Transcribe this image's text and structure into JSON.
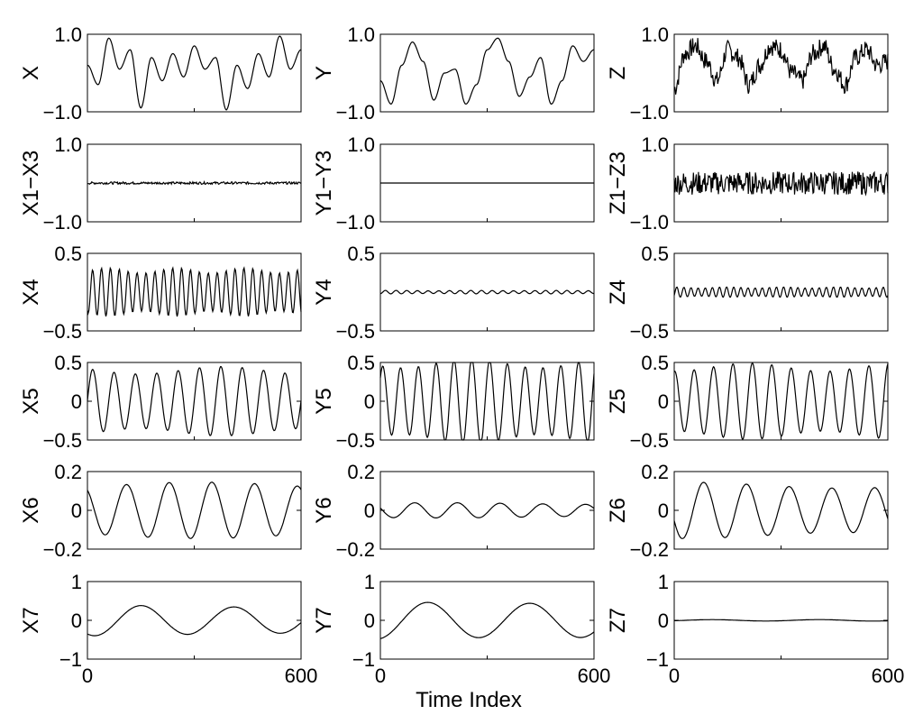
{
  "figure": {
    "xlabel": "Time Index",
    "line_color": "#000000",
    "background": "#ffffff"
  },
  "chart_data": [
    {
      "type": "line",
      "row": 0,
      "col": 0,
      "ylabel": "X",
      "ylim": [
        -1,
        1
      ],
      "yticks": [
        "1.0",
        "−1.0"
      ],
      "xlim": [
        0,
        600
      ],
      "xticks": [],
      "x": [
        0,
        30,
        60,
        90,
        120,
        150,
        180,
        210,
        240,
        270,
        300,
        330,
        360,
        390,
        420,
        450,
        480,
        510,
        540,
        570,
        600
      ],
      "series": [
        {
          "values": [
            0.2,
            -0.3,
            0.9,
            0.1,
            0.6,
            -0.9,
            0.4,
            -0.2,
            0.5,
            -0.1,
            0.7,
            0.1,
            0.4,
            -0.95,
            0.2,
            -0.4,
            0.5,
            -0.1,
            0.95,
            0.1,
            0.6
          ]
        }
      ]
    },
    {
      "type": "line",
      "row": 0,
      "col": 1,
      "ylabel": "Y",
      "ylim": [
        -1,
        1
      ],
      "yticks": [
        "1.0",
        "−1.0"
      ],
      "xlim": [
        0,
        600
      ],
      "xticks": [],
      "x": [
        0,
        30,
        60,
        90,
        120,
        150,
        180,
        210,
        240,
        270,
        300,
        330,
        360,
        390,
        420,
        450,
        480,
        510,
        540,
        570,
        600
      ],
      "series": [
        {
          "values": [
            -0.2,
            -0.8,
            0.2,
            0.8,
            0.3,
            -0.7,
            0.0,
            0.1,
            -0.8,
            -0.3,
            0.6,
            0.9,
            0.3,
            -0.6,
            -0.1,
            0.4,
            -0.8,
            -0.2,
            0.7,
            0.3,
            0.6
          ]
        }
      ]
    },
    {
      "type": "line",
      "row": 0,
      "col": 2,
      "ylabel": "Z",
      "ylim": [
        -1,
        1
      ],
      "yticks": [
        "1.0",
        "−1.0"
      ],
      "xlim": [
        0,
        600
      ],
      "xticks": [],
      "x": [
        0,
        30,
        60,
        90,
        120,
        150,
        180,
        210,
        240,
        270,
        300,
        330,
        360,
        390,
        420,
        450,
        480,
        510,
        540,
        570,
        600
      ],
      "series": [
        {
          "values": [
            -0.4,
            0.5,
            0.7,
            0.3,
            -0.2,
            0.6,
            0.4,
            -0.3,
            0.2,
            0.7,
            0.6,
            0.0,
            -0.2,
            0.5,
            0.7,
            0.1,
            -0.3,
            0.4,
            0.6,
            0.2,
            0.3
          ]
        }
      ],
      "noise": 0.25
    },
    {
      "type": "line",
      "row": 1,
      "col": 0,
      "ylabel": "X1−X3",
      "ylim": [
        -1,
        1
      ],
      "yticks": [
        "1.0",
        "−1.0"
      ],
      "xlim": [
        0,
        600
      ],
      "xticks": [],
      "x": [
        0,
        600
      ],
      "series": [
        {
          "values": [
            0,
            0
          ]
        }
      ],
      "noise": 0.03
    },
    {
      "type": "line",
      "row": 1,
      "col": 1,
      "ylabel": "Y1−Y3",
      "ylim": [
        -1,
        1
      ],
      "yticks": [
        "1.0",
        "−1.0"
      ],
      "xlim": [
        0,
        600
      ],
      "xticks": [],
      "x": [
        0,
        600
      ],
      "series": [
        {
          "values": [
            0,
            0
          ]
        }
      ],
      "noise": 0.0
    },
    {
      "type": "line",
      "row": 1,
      "col": 2,
      "ylabel": "Z1−Z3",
      "ylim": [
        -1,
        1
      ],
      "yticks": [
        "1.0",
        "−1.0"
      ],
      "xlim": [
        0,
        600
      ],
      "xticks": [],
      "x": [
        0,
        600
      ],
      "series": [
        {
          "values": [
            0,
            0
          ]
        }
      ],
      "noise": 0.3
    },
    {
      "type": "line",
      "row": 2,
      "col": 0,
      "ylabel": "X4",
      "ylim": [
        -0.5,
        0.5
      ],
      "yticks": [
        "0.5",
        "−0.5"
      ],
      "xlim": [
        0,
        600
      ],
      "xticks": [],
      "x": [
        0,
        600
      ],
      "series": [
        {
          "values": [
            0,
            0
          ]
        }
      ],
      "osc": {
        "amp": 0.28,
        "cycles": 24
      }
    },
    {
      "type": "line",
      "row": 2,
      "col": 1,
      "ylabel": "Y4",
      "ylim": [
        -0.5,
        0.5
      ],
      "yticks": [
        "0.5",
        "−0.5"
      ],
      "xlim": [
        0,
        600
      ],
      "xticks": [],
      "x": [
        0,
        600
      ],
      "series": [
        {
          "values": [
            0,
            0
          ]
        }
      ],
      "osc": {
        "amp": 0.02,
        "cycles": 20
      }
    },
    {
      "type": "line",
      "row": 2,
      "col": 2,
      "ylabel": "Z4",
      "ylim": [
        -0.5,
        0.5
      ],
      "yticks": [
        "0.5",
        "−0.5"
      ],
      "xlim": [
        0,
        600
      ],
      "xticks": [],
      "x": [
        0,
        600
      ],
      "series": [
        {
          "values": [
            0,
            0
          ]
        }
      ],
      "osc": {
        "amp": 0.06,
        "cycles": 30
      }
    },
    {
      "type": "line",
      "row": 3,
      "col": 0,
      "ylabel": "X5",
      "ylim": [
        -0.5,
        0.5
      ],
      "yticks": [
        "0.5",
        "0",
        "−0.5"
      ],
      "xlim": [
        0,
        600
      ],
      "xticks": [],
      "x": [
        0,
        600
      ],
      "series": [
        {
          "values": [
            0,
            0
          ]
        }
      ],
      "osc": {
        "amp": 0.4,
        "cycles": 10
      }
    },
    {
      "type": "line",
      "row": 3,
      "col": 1,
      "ylabel": "Y5",
      "ylim": [
        -0.5,
        0.5
      ],
      "yticks": [
        "0.5",
        "0",
        "−0.5"
      ],
      "xlim": [
        0,
        600
      ],
      "xticks": [],
      "x": [
        0,
        600
      ],
      "series": [
        {
          "values": [
            0,
            0
          ]
        }
      ],
      "osc": {
        "amp": 0.49,
        "cycles": 12
      }
    },
    {
      "type": "line",
      "row": 3,
      "col": 2,
      "ylabel": "Z5",
      "ylim": [
        -0.5,
        0.5
      ],
      "yticks": [
        "0.5",
        "0",
        "−0.5"
      ],
      "xlim": [
        0,
        600
      ],
      "xticks": [],
      "x": [
        0,
        600
      ],
      "series": [
        {
          "values": [
            0,
            0
          ]
        }
      ],
      "osc": {
        "amp": 0.44,
        "cycles": 11
      }
    },
    {
      "type": "line",
      "row": 4,
      "col": 0,
      "ylabel": "X6",
      "ylim": [
        -0.2,
        0.2
      ],
      "yticks": [
        "0.2",
        "0",
        "−0.2"
      ],
      "xlim": [
        0,
        600
      ],
      "xticks": [],
      "x": [
        0,
        600
      ],
      "series": [
        {
          "values": [
            0,
            0
          ]
        }
      ],
      "osc": {
        "amp": 0.13,
        "cycles": 5
      }
    },
    {
      "type": "line",
      "row": 4,
      "col": 1,
      "ylabel": "Y6",
      "ylim": [
        -0.2,
        0.2
      ],
      "yticks": [
        "0.2",
        "0",
        "−0.2"
      ],
      "xlim": [
        0,
        600
      ],
      "xticks": [],
      "x": [
        0,
        600
      ],
      "series": [
        {
          "values": [
            0,
            0
          ]
        }
      ],
      "osc": {
        "amp": 0.035,
        "cycles": 5
      }
    },
    {
      "type": "line",
      "row": 4,
      "col": 2,
      "ylabel": "Z6",
      "ylim": [
        -0.2,
        0.2
      ],
      "yticks": [
        "0.2",
        "0",
        "−0.2"
      ],
      "xlim": [
        0,
        600
      ],
      "xticks": [],
      "x": [
        0,
        600
      ],
      "series": [
        {
          "values": [
            0,
            0
          ]
        }
      ],
      "osc": {
        "amp": 0.13,
        "cycles": 5
      }
    },
    {
      "type": "line",
      "row": 5,
      "col": 0,
      "ylabel": "X7",
      "ylim": [
        -1,
        1
      ],
      "yticks": [
        "1",
        "0",
        "−1"
      ],
      "xlim": [
        0,
        600
      ],
      "xticks": [
        "0",
        "600"
      ],
      "x": [
        0,
        600
      ],
      "series": [
        {
          "values": [
            0,
            0
          ]
        }
      ],
      "osc": {
        "amp": 0.37,
        "cycles": 2.3
      }
    },
    {
      "type": "line",
      "row": 5,
      "col": 1,
      "ylabel": "Y7",
      "ylim": [
        -1,
        1
      ],
      "yticks": [
        "1",
        "0",
        "−1"
      ],
      "xlim": [
        0,
        600
      ],
      "xticks": [
        "0",
        "600"
      ],
      "x": [
        0,
        600
      ],
      "series": [
        {
          "values": [
            0,
            0
          ]
        }
      ],
      "osc": {
        "amp": 0.5,
        "cycles": 2.1
      }
    },
    {
      "type": "line",
      "row": 5,
      "col": 2,
      "ylabel": "Z7",
      "ylim": [
        -1,
        1
      ],
      "yticks": [
        "1",
        "0",
        "−1"
      ],
      "xlim": [
        0,
        600
      ],
      "xticks": [
        "0",
        "600"
      ],
      "x": [
        0,
        600
      ],
      "series": [
        {
          "values": [
            0,
            0
          ]
        }
      ],
      "osc": {
        "amp": 0.02,
        "cycles": 2
      }
    }
  ]
}
